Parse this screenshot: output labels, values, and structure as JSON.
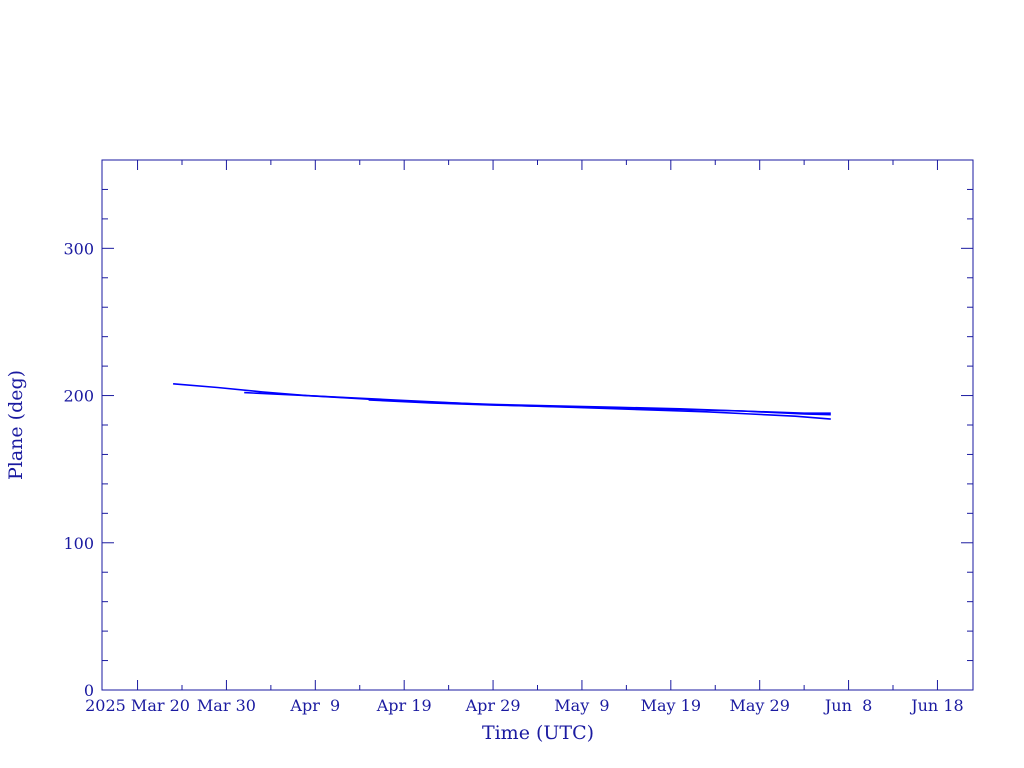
{
  "chart_data": {
    "type": "line",
    "title": "",
    "xlabel": "Time (UTC)",
    "ylabel": "Plane (deg)",
    "x_tick_labels": [
      "2025 Mar 20",
      "Mar 30",
      "Apr  9",
      "Apr 19",
      "Apr 29",
      "May  9",
      "May 19",
      "May 29",
      "Jun  8",
      "Jun 18"
    ],
    "y_tick_labels": [
      "0",
      "100",
      "200",
      "300"
    ],
    "x_tick_values": [
      "2025-03-20",
      "2025-03-30",
      "2025-04-09",
      "2025-04-19",
      "2025-04-29",
      "2025-05-09",
      "2025-05-19",
      "2025-05-29",
      "2025-06-08",
      "2025-06-18"
    ],
    "y_ticks": [
      0,
      100,
      200,
      300
    ],
    "xlim": [
      "2025-03-16",
      "2025-06-22"
    ],
    "ylim": [
      0,
      360
    ],
    "grid": false,
    "line_color": "#0000ff",
    "axis_color": "#1a1aa0",
    "series": [
      {
        "x": [
          "2025-03-24",
          "2025-03-29",
          "2025-04-03",
          "2025-04-08",
          "2025-04-13",
          "2025-04-18",
          "2025-04-23",
          "2025-04-28",
          "2025-05-03",
          "2025-05-08",
          "2025-05-13",
          "2025-05-18",
          "2025-05-23",
          "2025-05-28",
          "2025-06-02",
          "2025-06-06"
        ],
        "y": [
          208,
          205.5,
          202.5,
          200,
          198.5,
          197,
          195.5,
          194,
          193,
          192,
          191,
          190,
          189,
          187.5,
          186,
          184
        ]
      },
      {
        "x": [
          "2025-04-01",
          "2025-04-08",
          "2025-04-15",
          "2025-04-22",
          "2025-04-29",
          "2025-05-06",
          "2025-05-13",
          "2025-05-20",
          "2025-05-27",
          "2025-06-03",
          "2025-06-06"
        ],
        "y": [
          202,
          200,
          197.5,
          195.5,
          194,
          193,
          192,
          191,
          189.5,
          187.5,
          187
        ]
      },
      {
        "x": [
          "2025-04-15",
          "2025-04-22",
          "2025-04-29",
          "2025-05-06",
          "2025-05-13",
          "2025-05-20",
          "2025-05-27",
          "2025-06-03",
          "2025-06-06"
        ],
        "y": [
          197,
          195,
          193.5,
          192.5,
          191.5,
          190.5,
          189.5,
          188,
          188
        ]
      }
    ]
  }
}
